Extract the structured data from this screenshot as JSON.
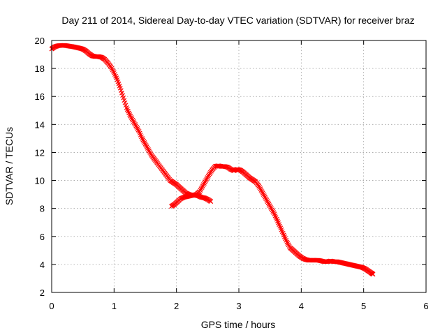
{
  "chart_data": {
    "type": "scatter",
    "title": "Day 211 of 2014, Sidereal Day-to-day VTEC variation (SDTVAR) for receiver braz",
    "xlabel": "GPS time / hours",
    "ylabel": "SDTVAR / TECUs",
    "xlim": [
      0,
      6
    ],
    "ylim": [
      2,
      20
    ],
    "xticks": [
      0,
      1,
      2,
      3,
      4,
      5,
      6
    ],
    "yticks": [
      2,
      4,
      6,
      8,
      10,
      12,
      14,
      16,
      18,
      20
    ],
    "grid": true,
    "marker": "cross",
    "series": [
      {
        "name": "SDTVAR",
        "color": "#ff0000",
        "points": [
          [
            0.0,
            19.4
          ],
          [
            0.05,
            19.55
          ],
          [
            0.1,
            19.62
          ],
          [
            0.15,
            19.65
          ],
          [
            0.2,
            19.65
          ],
          [
            0.25,
            19.62
          ],
          [
            0.3,
            19.58
          ],
          [
            0.35,
            19.55
          ],
          [
            0.4,
            19.5
          ],
          [
            0.45,
            19.45
          ],
          [
            0.5,
            19.38
          ],
          [
            0.55,
            19.25
          ],
          [
            0.6,
            19.05
          ],
          [
            0.65,
            18.9
          ],
          [
            0.7,
            18.85
          ],
          [
            0.75,
            18.85
          ],
          [
            0.8,
            18.8
          ],
          [
            0.85,
            18.65
          ],
          [
            0.9,
            18.4
          ],
          [
            0.95,
            18.1
          ],
          [
            1.0,
            17.7
          ],
          [
            1.05,
            17.2
          ],
          [
            1.1,
            16.6
          ],
          [
            1.15,
            15.9
          ],
          [
            1.2,
            15.2
          ],
          [
            1.25,
            14.7
          ],
          [
            1.3,
            14.3
          ],
          [
            1.35,
            13.9
          ],
          [
            1.4,
            13.5
          ],
          [
            1.45,
            13.0
          ],
          [
            1.5,
            12.6
          ],
          [
            1.55,
            12.2
          ],
          [
            1.6,
            11.8
          ],
          [
            1.65,
            11.5
          ],
          [
            1.7,
            11.2
          ],
          [
            1.75,
            10.9
          ],
          [
            1.8,
            10.6
          ],
          [
            1.85,
            10.3
          ],
          [
            1.9,
            10.0
          ],
          [
            1.95,
            9.85
          ],
          [
            2.0,
            9.7
          ],
          [
            2.05,
            9.5
          ],
          [
            2.1,
            9.3
          ],
          [
            2.15,
            9.1
          ],
          [
            2.2,
            9.0
          ],
          [
            2.25,
            8.95
          ],
          [
            2.3,
            8.95
          ],
          [
            2.35,
            8.9
          ],
          [
            2.4,
            8.8
          ],
          [
            2.45,
            8.75
          ],
          [
            2.5,
            8.65
          ],
          [
            2.55,
            8.5
          ],
          [
            1.92,
            8.15
          ],
          [
            1.97,
            8.3
          ],
          [
            2.02,
            8.5
          ],
          [
            2.07,
            8.7
          ],
          [
            2.12,
            8.8
          ],
          [
            2.17,
            8.85
          ],
          [
            2.22,
            8.9
          ],
          [
            2.27,
            8.95
          ],
          [
            2.32,
            9.0
          ],
          [
            2.37,
            9.2
          ],
          [
            2.42,
            9.6
          ],
          [
            2.47,
            10.0
          ],
          [
            2.52,
            10.4
          ],
          [
            2.57,
            10.75
          ],
          [
            2.62,
            11.0
          ],
          [
            2.67,
            11.05
          ],
          [
            2.72,
            11.0
          ],
          [
            2.77,
            11.0
          ],
          [
            2.82,
            10.95
          ],
          [
            2.87,
            10.8
          ],
          [
            2.92,
            10.7
          ],
          [
            2.97,
            10.8
          ],
          [
            3.02,
            10.75
          ],
          [
            3.07,
            10.6
          ],
          [
            3.12,
            10.4
          ],
          [
            3.17,
            10.2
          ],
          [
            3.22,
            10.05
          ],
          [
            3.27,
            9.9
          ],
          [
            3.32,
            9.6
          ],
          [
            3.37,
            9.2
          ],
          [
            3.42,
            8.8
          ],
          [
            3.47,
            8.4
          ],
          [
            3.52,
            8.0
          ],
          [
            3.57,
            7.6
          ],
          [
            3.62,
            7.1
          ],
          [
            3.67,
            6.6
          ],
          [
            3.72,
            6.1
          ],
          [
            3.77,
            5.6
          ],
          [
            3.82,
            5.2
          ],
          [
            3.87,
            5.0
          ],
          [
            3.92,
            4.8
          ],
          [
            3.97,
            4.6
          ],
          [
            4.02,
            4.45
          ],
          [
            4.07,
            4.35
          ],
          [
            4.12,
            4.3
          ],
          [
            4.17,
            4.3
          ],
          [
            4.22,
            4.3
          ],
          [
            4.27,
            4.3
          ],
          [
            4.32,
            4.25
          ],
          [
            4.37,
            4.2
          ],
          [
            4.42,
            4.2
          ],
          [
            4.47,
            4.25
          ],
          [
            4.52,
            4.2
          ],
          [
            4.57,
            4.2
          ],
          [
            4.62,
            4.15
          ],
          [
            4.67,
            4.1
          ],
          [
            4.72,
            4.05
          ],
          [
            4.77,
            4.0
          ],
          [
            4.82,
            3.95
          ],
          [
            4.87,
            3.9
          ],
          [
            4.92,
            3.85
          ],
          [
            4.97,
            3.8
          ],
          [
            5.02,
            3.7
          ],
          [
            5.07,
            3.55
          ],
          [
            5.12,
            3.4
          ],
          [
            5.15,
            3.3
          ]
        ]
      }
    ]
  }
}
